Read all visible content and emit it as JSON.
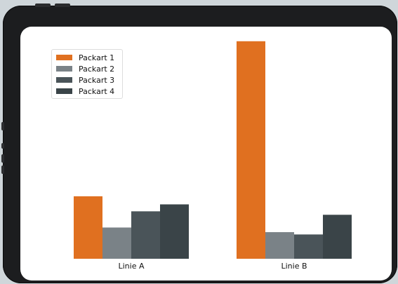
{
  "colors": {
    "device": "#1c1d1f",
    "screen": "#ffffff"
  },
  "chart_data": {
    "type": "bar",
    "categories": [
      "Linie A",
      "Linie B"
    ],
    "series": [
      {
        "name": "Packart 1",
        "values": [
          27,
          94
        ],
        "color": "#e07020"
      },
      {
        "name": "Packart 2",
        "values": [
          13.5,
          11.5
        ],
        "color": "#7a8287"
      },
      {
        "name": "Packart 3",
        "values": [
          20.5,
          10.5
        ],
        "color": "#4a5459"
      },
      {
        "name": "Packart 4",
        "values": [
          23.5,
          19
        ],
        "color": "#3a4448"
      }
    ],
    "title": "",
    "xlabel": "",
    "ylabel": "",
    "ylim": [
      0,
      100
    ],
    "grid": false,
    "legend_position": "top-left"
  }
}
